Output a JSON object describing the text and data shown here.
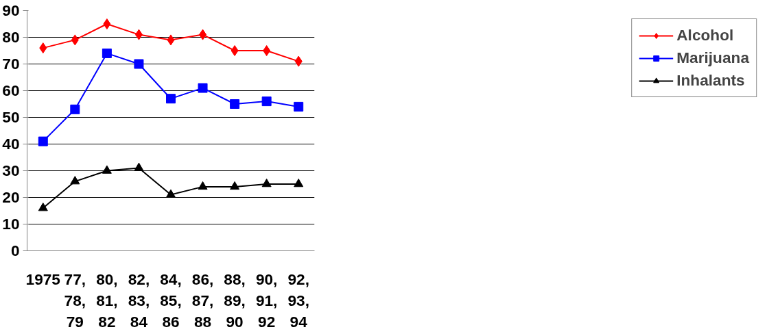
{
  "chart_data": {
    "type": "line",
    "categories": [
      "1975",
      "77,\n78,\n79",
      "80,\n81,\n82",
      "82,\n83,\n84",
      "84,\n85,\n86",
      "86,\n87,\n88",
      "88,\n89,\n90",
      "90,\n91,\n92",
      "92,\n93,\n94"
    ],
    "series": [
      {
        "name": "Alcohol",
        "color": "#ff0000",
        "marker": "diamond",
        "values": [
          76,
          79,
          85,
          81,
          79,
          81,
          75,
          75,
          71
        ]
      },
      {
        "name": "Marijuana",
        "color": "#0000ff",
        "marker": "square",
        "values": [
          41,
          53,
          74,
          70,
          57,
          61,
          55,
          56,
          54
        ]
      },
      {
        "name": "Inhalants",
        "color": "#000000",
        "marker": "triangle",
        "values": [
          16,
          26,
          30,
          31,
          21,
          24,
          24,
          25,
          25
        ]
      }
    ],
    "ylim": [
      0,
      90
    ],
    "yticks": [
      0,
      10,
      20,
      30,
      40,
      50,
      60,
      70,
      80,
      90
    ],
    "grid": "y",
    "legend": "right",
    "line_style": "solid"
  }
}
